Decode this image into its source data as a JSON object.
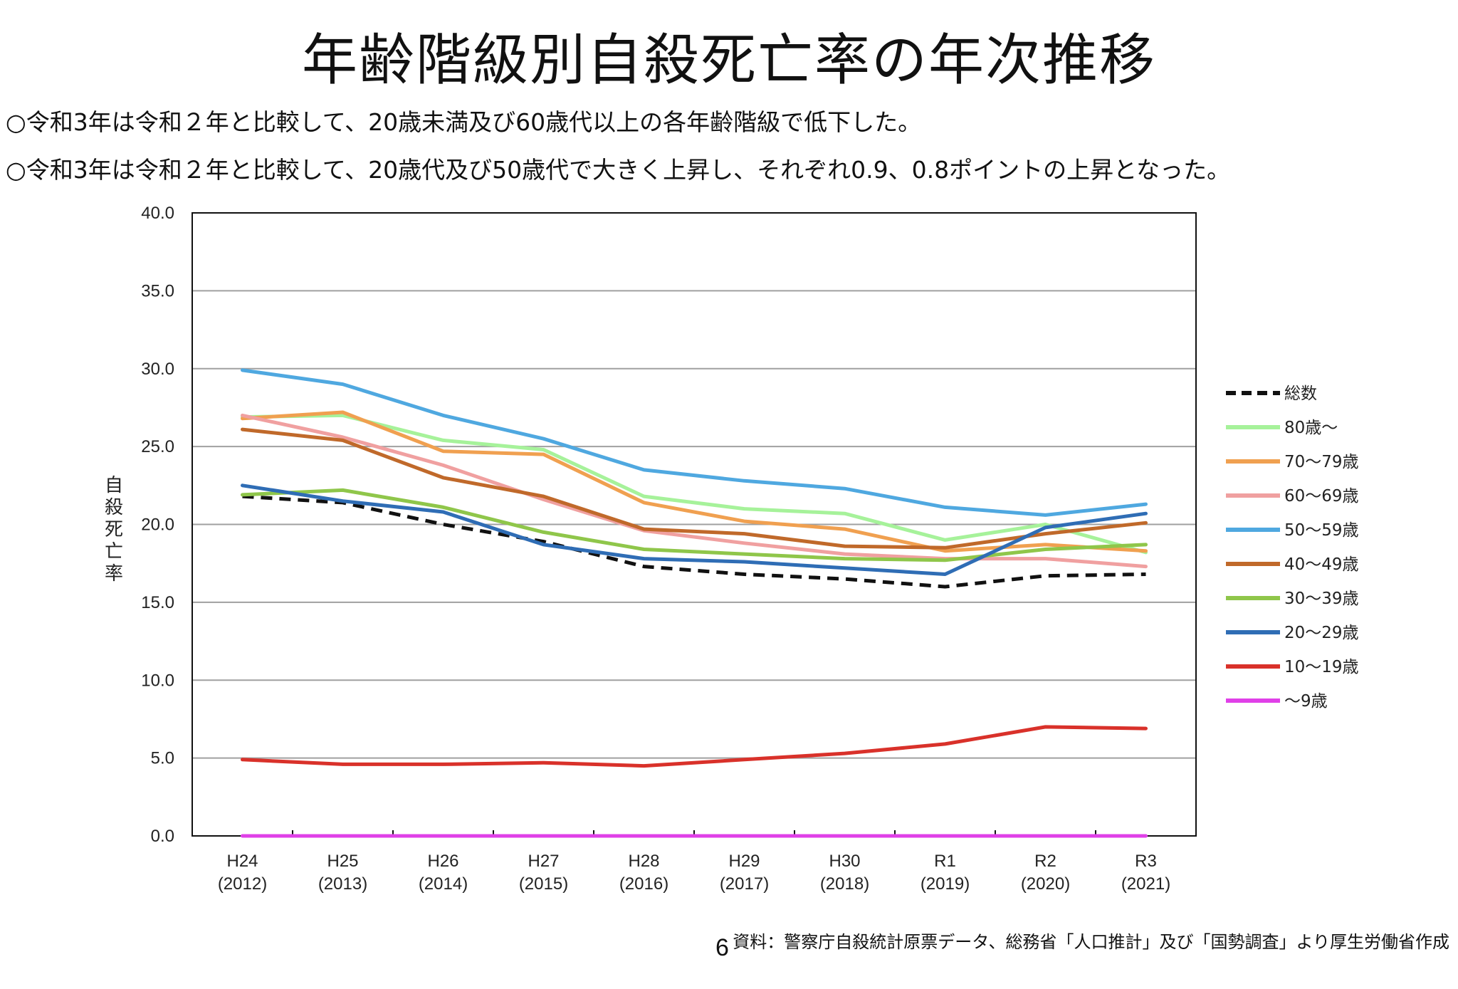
{
  "title": "年齢階級別自殺死亡率の年次推移",
  "notes": [
    "○令和3年は令和２年と比較して、20歳未満及び60歳代以上の各年齢階級で低下した。",
    "○令和3年は令和２年と比較して、20歳代及び50歳代で大きく上昇し、それぞれ0.9、0.8ポイントの上昇となった。"
  ],
  "page_number": "6",
  "source": "資料：警察庁自殺統計原票データ、総務省「人口推計」及び「国勢調査」より厚生労働省作成",
  "chart_data": {
    "type": "line",
    "ylabel": "自殺死亡率",
    "ylim": [
      0,
      40
    ],
    "yticks": [
      "0.0",
      "5.0",
      "10.0",
      "15.0",
      "20.0",
      "25.0",
      "30.0",
      "35.0",
      "40.0"
    ],
    "grid": true,
    "legend_position": "right",
    "x": [
      [
        "H24",
        "(2012)"
      ],
      [
        "H25",
        "(2013)"
      ],
      [
        "H26",
        "(2014)"
      ],
      [
        "H27",
        "(2015)"
      ],
      [
        "H28",
        "(2016)"
      ],
      [
        "H29",
        "(2017)"
      ],
      [
        "H30",
        "(2018)"
      ],
      [
        "R1",
        "(2019)"
      ],
      [
        "R2",
        "(2020)"
      ],
      [
        "R3",
        "(2021)"
      ]
    ],
    "series": [
      {
        "name": "総数",
        "color": "#111111",
        "dashed": true,
        "values": [
          21.8,
          21.4,
          20.0,
          18.9,
          17.3,
          16.8,
          16.5,
          16.0,
          16.7,
          16.8
        ]
      },
      {
        "name": "80歳～",
        "color": "#a6f29a",
        "dashed": false,
        "values": [
          26.9,
          27.0,
          25.4,
          24.8,
          21.8,
          21.0,
          20.7,
          19.0,
          20.0,
          18.2
        ]
      },
      {
        "name": "70～79歳",
        "color": "#f0a050",
        "dashed": false,
        "values": [
          26.8,
          27.2,
          24.7,
          24.5,
          21.4,
          20.2,
          19.7,
          18.3,
          18.7,
          18.3
        ]
      },
      {
        "name": "60～69歳",
        "color": "#f0a0a0",
        "dashed": false,
        "values": [
          27.0,
          25.6,
          23.8,
          21.6,
          19.6,
          18.8,
          18.1,
          17.8,
          17.8,
          17.3
        ]
      },
      {
        "name": "50～59歳",
        "color": "#4fa8e0",
        "dashed": false,
        "values": [
          29.9,
          29.0,
          27.0,
          25.5,
          23.5,
          22.8,
          22.3,
          21.1,
          20.6,
          21.3
        ]
      },
      {
        "name": "40～49歳",
        "color": "#c0692a",
        "dashed": false,
        "values": [
          26.1,
          25.4,
          23.0,
          21.8,
          19.7,
          19.4,
          18.6,
          18.5,
          19.4,
          20.1
        ]
      },
      {
        "name": "30～39歳",
        "color": "#8fc64a",
        "dashed": false,
        "values": [
          21.9,
          22.2,
          21.1,
          19.5,
          18.4,
          18.1,
          17.8,
          17.7,
          18.4,
          18.7
        ]
      },
      {
        "name": "20～29歳",
        "color": "#2f6db5",
        "dashed": false,
        "values": [
          22.5,
          21.5,
          20.8,
          18.7,
          17.8,
          17.6,
          17.2,
          16.8,
          19.8,
          20.7
        ]
      },
      {
        "name": "10～19歳",
        "color": "#d9312a",
        "dashed": false,
        "values": [
          4.9,
          4.6,
          4.6,
          4.7,
          4.5,
          4.9,
          5.3,
          5.9,
          7.0,
          6.9
        ]
      },
      {
        "name": "～9歳",
        "color": "#e040e8",
        "dashed": false,
        "values": [
          0.0,
          0.0,
          0.0,
          0.0,
          0.0,
          0.0,
          0.0,
          0.0,
          0.0,
          0.0
        ]
      }
    ]
  }
}
